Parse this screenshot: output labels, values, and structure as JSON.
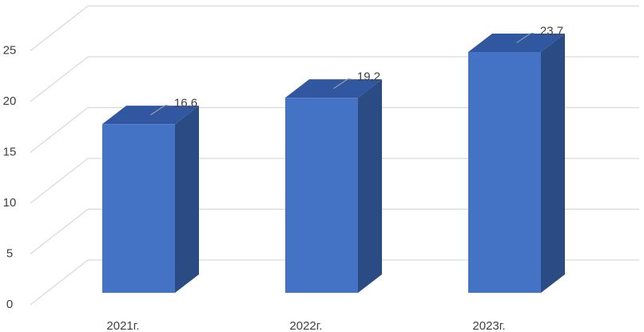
{
  "chart_data": {
    "type": "bar3d",
    "categories": [
      "2021г.",
      "2022г.",
      "2023г."
    ],
    "values": [
      16.6,
      19.2,
      23.7
    ],
    "value_labels": [
      "16,6",
      "19,2",
      "23,7"
    ],
    "color": "#4472c4",
    "ylim": [
      0,
      25
    ],
    "yticks": [
      0,
      5,
      10,
      15,
      20,
      25
    ],
    "grid": true
  }
}
